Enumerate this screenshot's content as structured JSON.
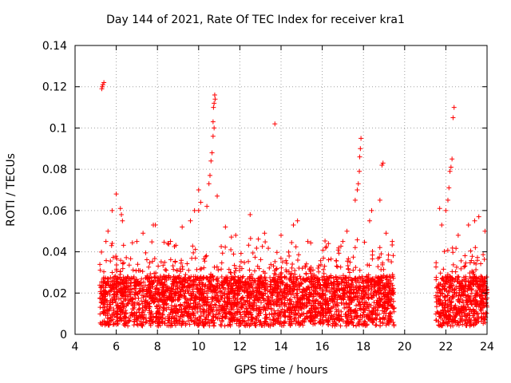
{
  "chart_data": {
    "type": "scatter",
    "title": "Day 144 of 2021, Rate Of TEC Index for receiver kra1",
    "xlabel": "GPS time / hours",
    "ylabel": "ROTI / TECUs",
    "xlim": [
      4,
      24
    ],
    "ylim": [
      0,
      0.14
    ],
    "xticks": [
      "4",
      "6",
      "8",
      "10",
      "12",
      "14",
      "16",
      "18",
      "20",
      "22",
      "24"
    ],
    "yticks": [
      "0",
      "0.02",
      "0.04",
      "0.06",
      "0.08",
      "0.1",
      "0.12",
      "0.14"
    ],
    "grid": true,
    "marker": "+",
    "color": "#ff0000",
    "series": [
      {
        "data_coverage_hours": [
          [
            5.2,
            19.5
          ],
          [
            21.5,
            24.0
          ]
        ],
        "points": [
          [
            5.3,
            0.119
          ],
          [
            5.35,
            0.121
          ],
          [
            5.4,
            0.122
          ],
          [
            5.32,
            0.12
          ],
          [
            5.5,
            0.045
          ],
          [
            5.6,
            0.05
          ],
          [
            5.8,
            0.06
          ],
          [
            6.0,
            0.068
          ],
          [
            6.2,
            0.061
          ],
          [
            6.25,
            0.058
          ],
          [
            6.3,
            0.055
          ],
          [
            7.0,
            0.045
          ],
          [
            7.3,
            0.049
          ],
          [
            7.8,
            0.053
          ],
          [
            7.9,
            0.053
          ],
          [
            8.5,
            0.044
          ],
          [
            9.2,
            0.052
          ],
          [
            9.6,
            0.055
          ],
          [
            9.8,
            0.06
          ],
          [
            10.0,
            0.06
          ],
          [
            10.0,
            0.07
          ],
          [
            10.1,
            0.064
          ],
          [
            10.4,
            0.062
          ],
          [
            10.5,
            0.073
          ],
          [
            10.55,
            0.077
          ],
          [
            10.6,
            0.084
          ],
          [
            10.65,
            0.088
          ],
          [
            10.7,
            0.096
          ],
          [
            10.75,
            0.1
          ],
          [
            10.7,
            0.103
          ],
          [
            10.72,
            0.11
          ],
          [
            10.75,
            0.112
          ],
          [
            10.8,
            0.114
          ],
          [
            10.78,
            0.116
          ],
          [
            10.9,
            0.067
          ],
          [
            11.3,
            0.052
          ],
          [
            11.8,
            0.048
          ],
          [
            12.5,
            0.058
          ],
          [
            13.2,
            0.049
          ],
          [
            13.7,
            0.102
          ],
          [
            14.0,
            0.048
          ],
          [
            14.6,
            0.053
          ],
          [
            14.8,
            0.055
          ],
          [
            15.3,
            0.045
          ],
          [
            16.3,
            0.044
          ],
          [
            17.0,
            0.045
          ],
          [
            17.2,
            0.05
          ],
          [
            17.6,
            0.065
          ],
          [
            17.7,
            0.07
          ],
          [
            17.75,
            0.073
          ],
          [
            17.8,
            0.079
          ],
          [
            17.82,
            0.086
          ],
          [
            17.85,
            0.09
          ],
          [
            17.88,
            0.095
          ],
          [
            18.3,
            0.055
          ],
          [
            18.4,
            0.06
          ],
          [
            18.8,
            0.065
          ],
          [
            18.9,
            0.082
          ],
          [
            18.95,
            0.083
          ],
          [
            19.1,
            0.049
          ],
          [
            19.4,
            0.045
          ],
          [
            21.7,
            0.061
          ],
          [
            21.8,
            0.053
          ],
          [
            22.0,
            0.06
          ],
          [
            22.1,
            0.065
          ],
          [
            22.15,
            0.071
          ],
          [
            22.2,
            0.079
          ],
          [
            22.25,
            0.081
          ],
          [
            22.3,
            0.085
          ],
          [
            22.35,
            0.105
          ],
          [
            22.4,
            0.11
          ],
          [
            22.6,
            0.048
          ],
          [
            23.1,
            0.053
          ],
          [
            23.4,
            0.055
          ],
          [
            23.6,
            0.057
          ],
          [
            23.9,
            0.05
          ]
        ]
      }
    ]
  }
}
